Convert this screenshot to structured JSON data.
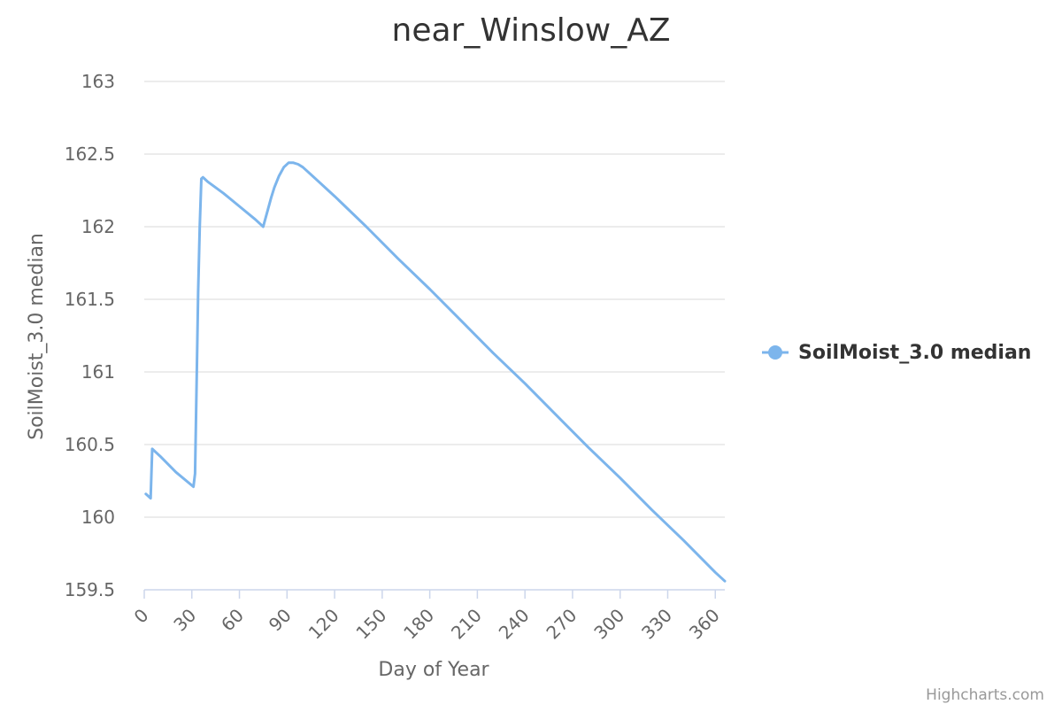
{
  "chart_data": {
    "type": "line",
    "title": "near_Winslow_AZ",
    "xlabel": "Day of Year",
    "ylabel": "SoilMoist_3.0 median",
    "xlim": [
      0,
      366
    ],
    "ylim": [
      159.5,
      163
    ],
    "x_ticks": [
      "0",
      "30",
      "60",
      "90",
      "120",
      "150",
      "180",
      "210",
      "240",
      "270",
      "300",
      "330",
      "360"
    ],
    "y_ticks": [
      "159.5",
      "160",
      "160.5",
      "161",
      "161.5",
      "162",
      "162.5",
      "163"
    ],
    "grid": true,
    "legend_position": "right",
    "series": [
      {
        "name": "SoilMoist_3.0 median",
        "color": "#7cb5ec",
        "x": [
          1,
          3,
          4,
          5,
          10,
          20,
          31,
          32,
          33,
          34,
          35,
          36,
          37,
          38,
          40,
          50,
          60,
          70,
          75,
          76,
          78,
          80,
          82,
          85,
          88,
          91,
          94,
          97,
          100,
          103,
          106,
          110,
          115,
          120,
          140,
          160,
          180,
          200,
          220,
          240,
          260,
          280,
          300,
          320,
          340,
          360,
          366
        ],
        "y": [
          160.16,
          160.14,
          160.13,
          160.47,
          160.42,
          160.31,
          160.21,
          160.3,
          160.9,
          161.55,
          162.0,
          162.33,
          162.34,
          162.33,
          162.31,
          162.23,
          162.14,
          162.05,
          162.0,
          162.04,
          162.12,
          162.2,
          162.27,
          162.35,
          162.41,
          162.44,
          162.44,
          162.43,
          162.41,
          162.38,
          162.35,
          162.31,
          162.26,
          162.21,
          162.0,
          161.78,
          161.57,
          161.35,
          161.13,
          160.92,
          160.7,
          160.48,
          160.27,
          160.05,
          159.84,
          159.62,
          159.56
        ]
      }
    ]
  },
  "credits": "Highcharts.com"
}
